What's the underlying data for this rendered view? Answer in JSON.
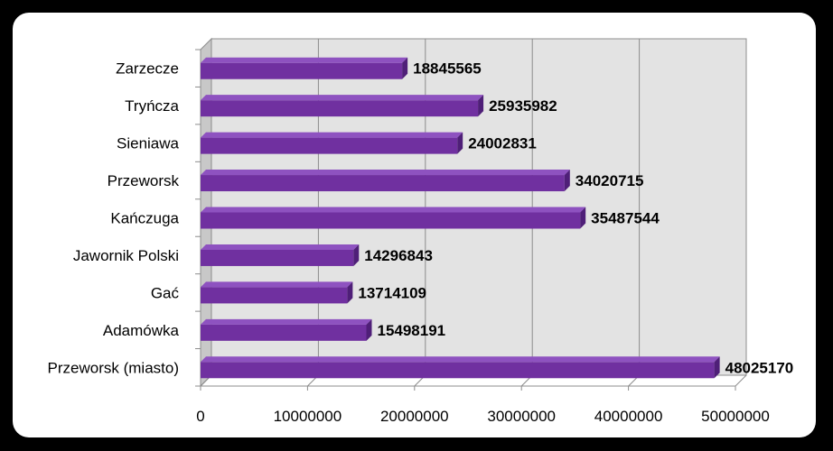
{
  "chart_data": {
    "type": "bar",
    "orientation": "horizontal",
    "style": "3d",
    "categories": [
      "Przeworsk (miasto)",
      "Adamówka",
      "Gać",
      "Jawornik Polski",
      "Kańczuga",
      "Przeworsk",
      "Sieniawa",
      "Tryńcza",
      "Zarzecze"
    ],
    "values": [
      48025170,
      15498191,
      13714109,
      14296843,
      35487544,
      34020715,
      24002831,
      25935982,
      18845565
    ],
    "data_labels": [
      "48025170",
      "15498191",
      "13714109",
      "14296843",
      "35487544",
      "34020715",
      "24002831",
      "25935982",
      "18845565"
    ],
    "xlim": [
      0,
      50000000
    ],
    "xticks": [
      0,
      10000000,
      20000000,
      30000000,
      40000000,
      50000000
    ],
    "xtick_labels": [
      "0",
      "10000000",
      "20000000",
      "30000000",
      "40000000",
      "50000000"
    ],
    "title": "",
    "xlabel": "",
    "ylabel": "",
    "grid": "vertical",
    "legend": "none",
    "colors": {
      "bar_front": "#7030a0",
      "bar_top": "#8e52c0",
      "bar_side": "#4f1f78",
      "plot_back": "#e3e3e3",
      "plot_floor": "#c8c8c8",
      "gridline": "#8c8c8c",
      "background": "#000000",
      "chart_area": "#ffffff"
    }
  }
}
